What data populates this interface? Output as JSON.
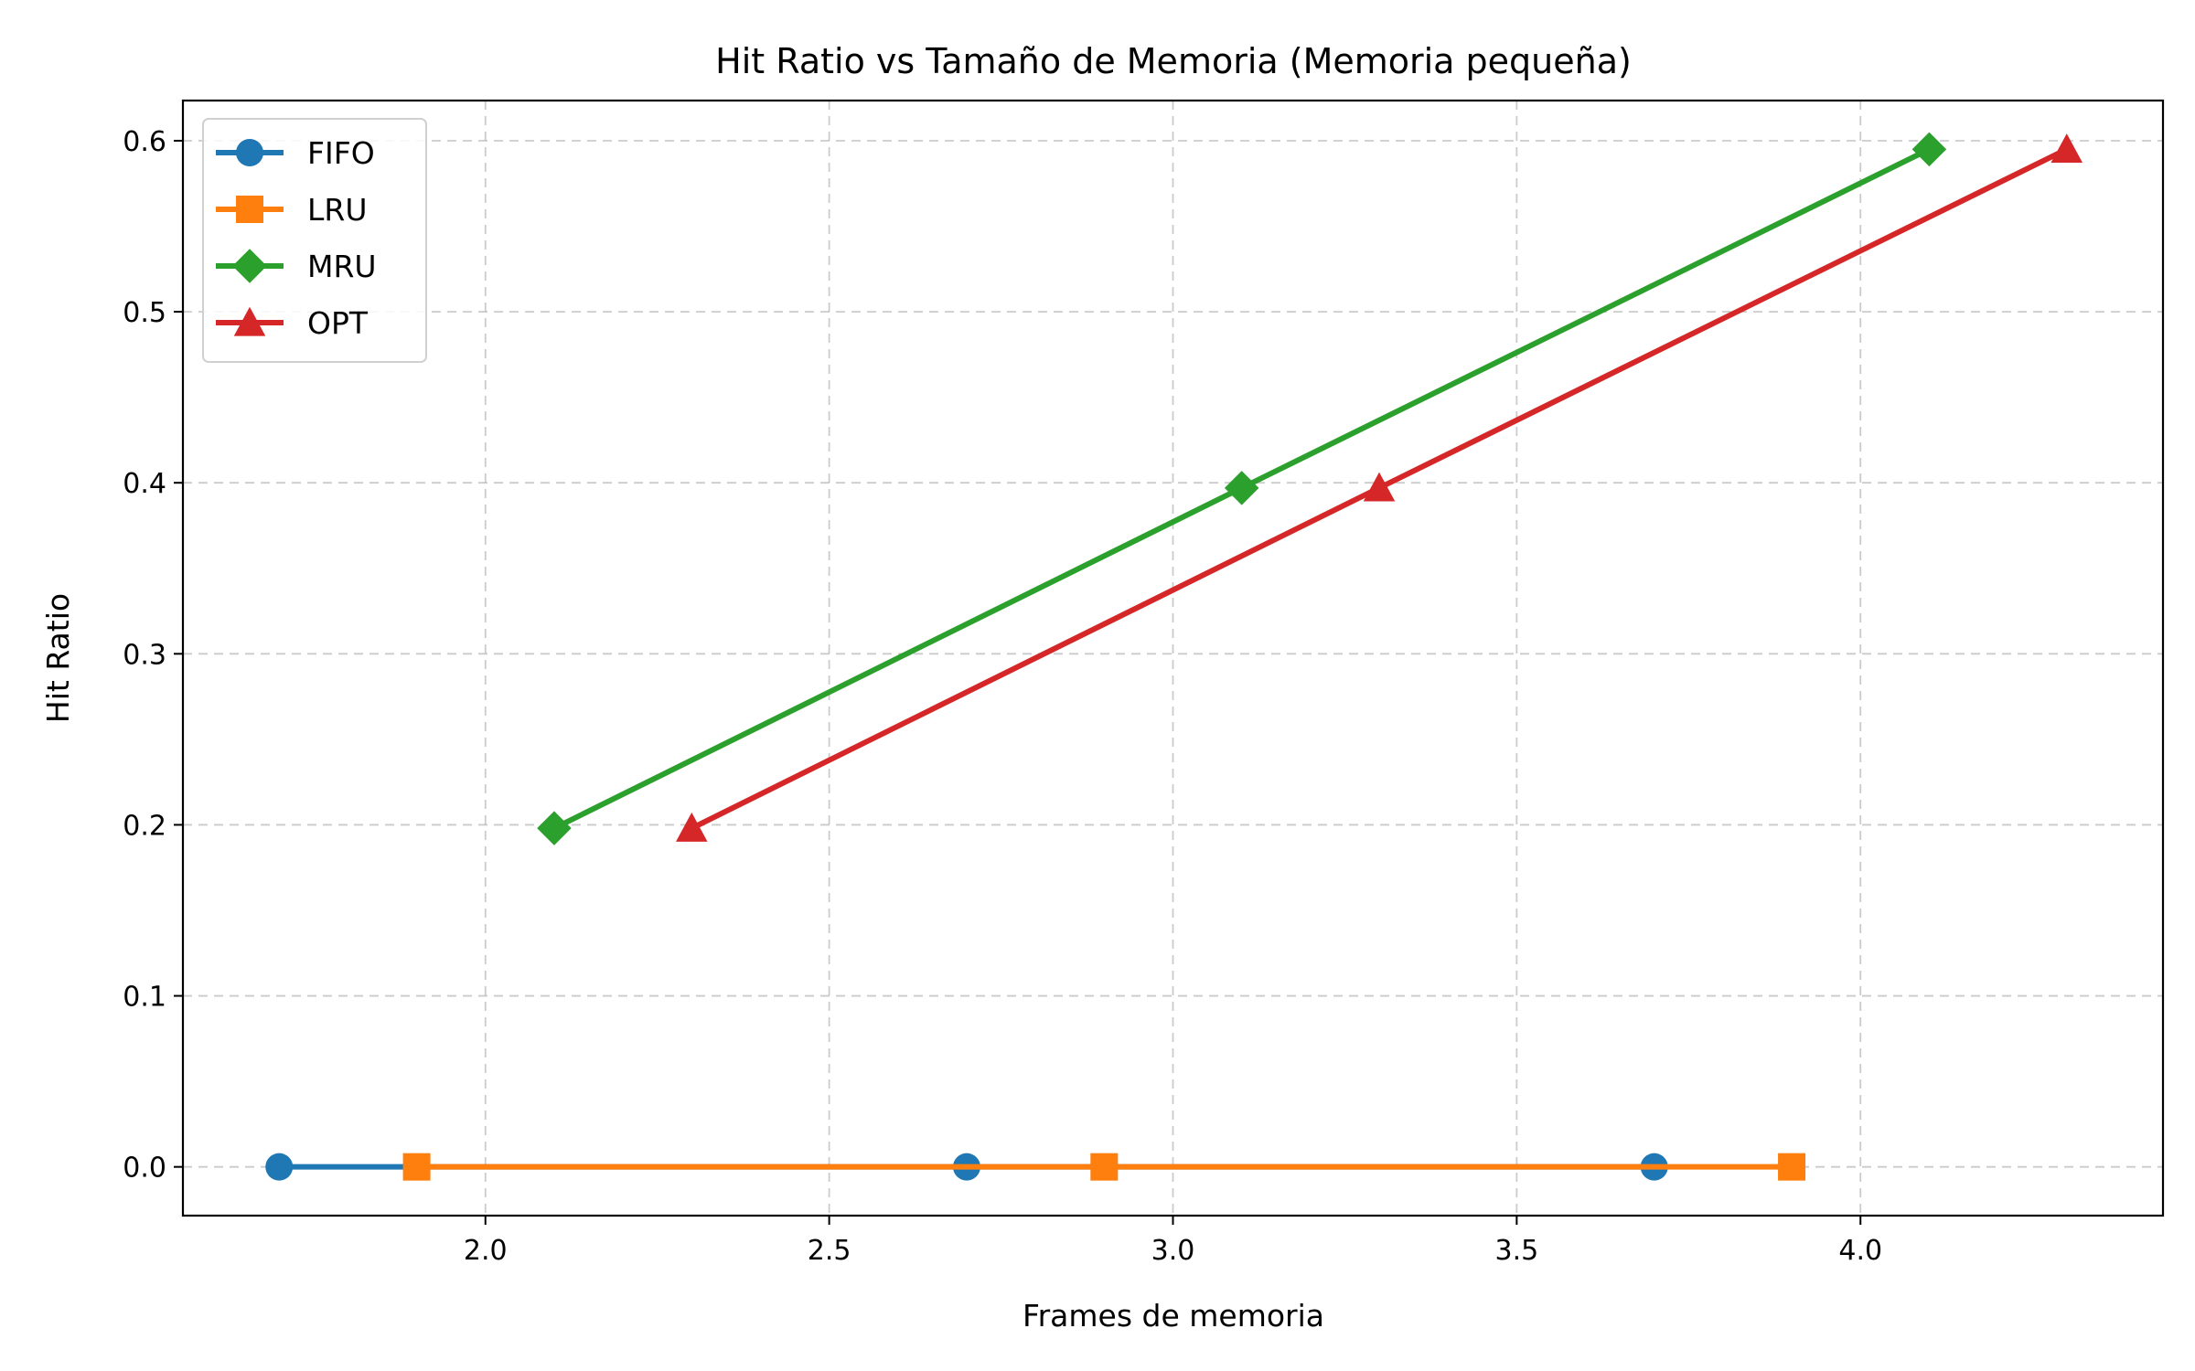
{
  "chart_data": {
    "type": "line",
    "title": "Hit Ratio vs Tamaño de Memoria (Memoria pequeña)",
    "xlabel": "Frames de memoria",
    "ylabel": "Hit Ratio",
    "xlim": [
      1.56,
      4.44
    ],
    "ylim": [
      -0.0285,
      0.6235
    ],
    "xticks": [
      2.0,
      2.5,
      3.0,
      3.5,
      4.0
    ],
    "xtick_labels": [
      "2.0",
      "2.5",
      "3.0",
      "3.5",
      "4.0"
    ],
    "yticks": [
      0.0,
      0.1,
      0.2,
      0.3,
      0.4,
      0.5,
      0.6
    ],
    "ytick_labels": [
      "0.0",
      "0.1",
      "0.2",
      "0.3",
      "0.4",
      "0.5",
      "0.6"
    ],
    "grid": true,
    "legend_position": "top-left",
    "series": [
      {
        "name": "FIFO",
        "color": "#1f77b4",
        "marker": "circle",
        "x": [
          1.7,
          2.7,
          3.7
        ],
        "y": [
          0.0,
          0.0,
          0.0
        ]
      },
      {
        "name": "LRU",
        "color": "#ff7f0e",
        "marker": "square",
        "x": [
          1.9,
          2.9,
          3.9
        ],
        "y": [
          0.0,
          0.0,
          0.0
        ]
      },
      {
        "name": "MRU",
        "color": "#2ca02c",
        "marker": "diamond",
        "x": [
          2.1,
          3.1,
          4.1
        ],
        "y": [
          0.198,
          0.397,
          0.595
        ]
      },
      {
        "name": "OPT",
        "color": "#d62728",
        "marker": "triangle",
        "x": [
          2.3,
          3.3,
          4.3
        ],
        "y": [
          0.198,
          0.397,
          0.595
        ]
      }
    ]
  }
}
